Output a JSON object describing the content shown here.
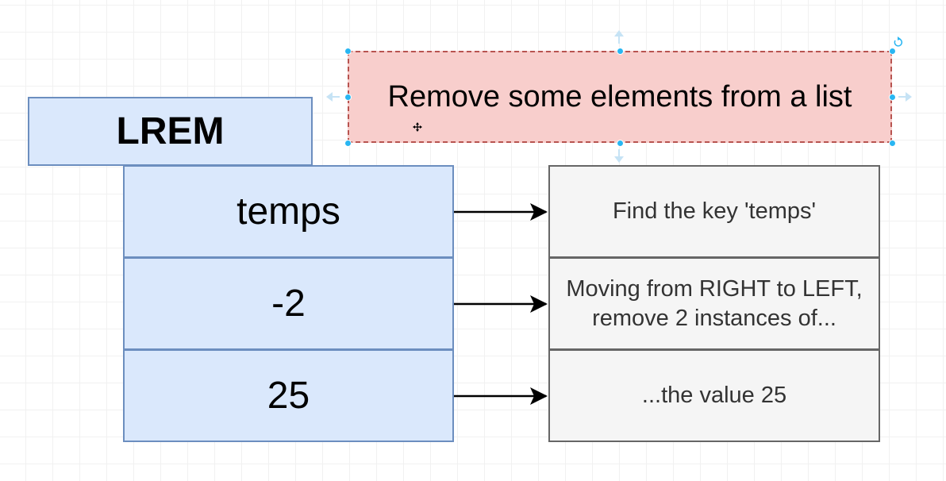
{
  "diagram": {
    "header_note": "Remove some elements from a list",
    "command_name": "LREM",
    "rows": [
      {
        "arg": "temps",
        "desc": "Find the key 'temps'"
      },
      {
        "arg": "-2",
        "desc": "Moving from RIGHT to LEFT, remove 2 instances of..."
      },
      {
        "arg": "25",
        "desc": "...the value 25"
      }
    ]
  },
  "colors": {
    "command_fill": "#dae8fc",
    "command_stroke": "#6c8ebf",
    "desc_fill": "#f5f5f5",
    "desc_stroke": "#666666",
    "note_fill": "#f8cecc",
    "note_stroke": "#b85450",
    "selection_handle": "#29b6f2"
  }
}
